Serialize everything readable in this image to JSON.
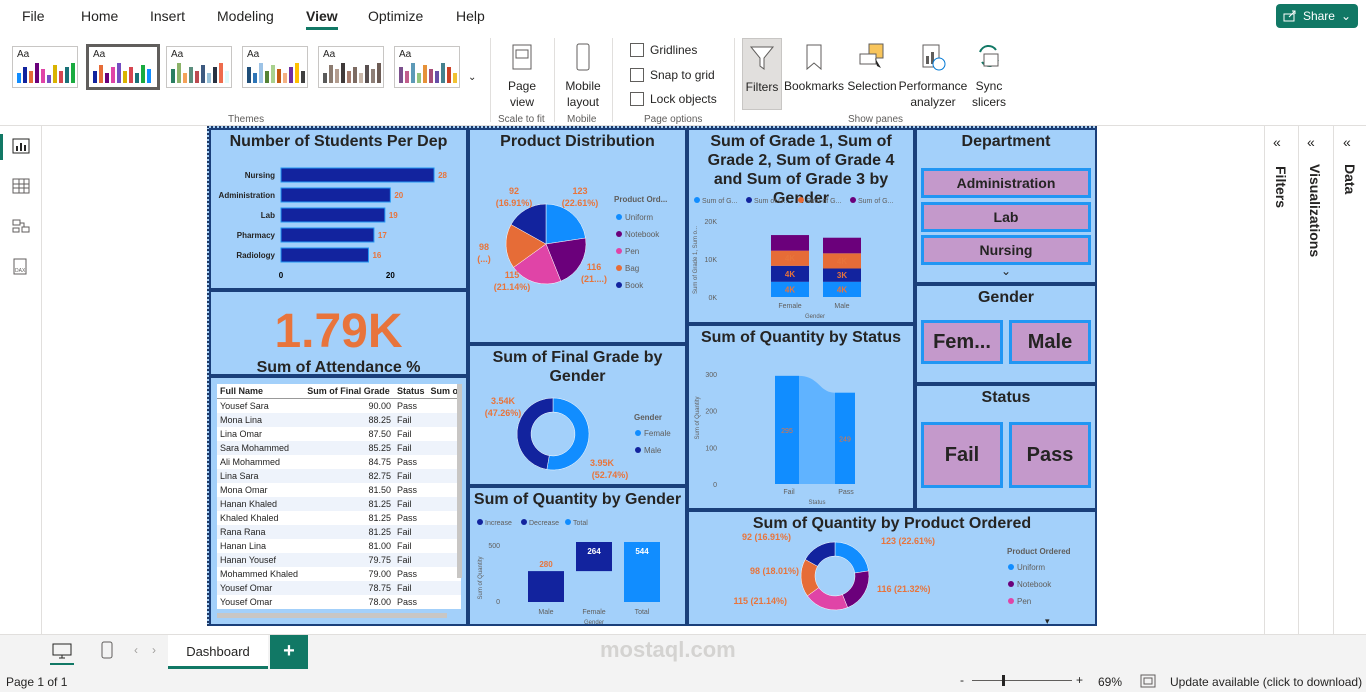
{
  "menu": {
    "items": [
      "File",
      "Home",
      "Insert",
      "Modeling",
      "View",
      "Optimize",
      "Help"
    ],
    "active": "View",
    "share": "Share"
  },
  "ribbon": {
    "themes_label": "Themes",
    "page_view": "Page view",
    "scale_label": "Scale to fit",
    "mobile_layout": "Mobile layout",
    "mobile_label": "Mobile",
    "gridlines": "Gridlines",
    "snap": "Snap to grid",
    "lock": "Lock objects",
    "page_options_label": "Page options",
    "filters": "Filters",
    "bookmarks": "Bookmarks",
    "selection": "Selection",
    "performance": "Performance analyzer",
    "sync": "Sync slicers",
    "show_panes_label": "Show panes"
  },
  "panes": {
    "filters": "Filters",
    "visualizations": "Visualizations",
    "data": "Data"
  },
  "report": {
    "students": {
      "title": "Number of Students Per Dep",
      "rows": [
        {
          "label": "Nursing",
          "value": 28
        },
        {
          "label": "Administration",
          "value": 20
        },
        {
          "label": "Lab",
          "value": 19
        },
        {
          "label": "Pharmacy",
          "value": 17
        },
        {
          "label": "Radiology",
          "value": 16
        }
      ],
      "axis": [
        "0",
        "20"
      ]
    },
    "kpi": {
      "value": "1.79K",
      "label": "Sum of Attendance %"
    },
    "product": {
      "title": "Product Distribution",
      "legend_title": "Product Ord...",
      "legend": [
        "Uniform",
        "Notebook",
        "Pen",
        "Bag",
        "Book"
      ],
      "labels": [
        "92",
        "(16.91%)",
        "123",
        "(22.61%)",
        "98",
        "(...)",
        "115",
        "(21.14%)",
        "116",
        "(21....)"
      ]
    },
    "grades": {
      "title": "Sum of Grade 1, Sum of Grade 2, Sum of Grade 4 and Sum of Grade 3 by Gender",
      "legend": [
        "Sum of G...",
        "Sum of G...",
        "Sum of G...",
        "Sum of G..."
      ],
      "yaxis": [
        "20K",
        "10K",
        "0K"
      ],
      "ylabel": "Sum of Grade 1, Sum o...",
      "xlabel": "Gender",
      "female_labels": [
        "4K",
        "4K",
        "4K"
      ],
      "male_labels": [
        "4K",
        "3K",
        "4K"
      ],
      "categories": [
        "Female",
        "Male"
      ]
    },
    "department": {
      "title": "Department",
      "items": [
        "Administration",
        "Lab",
        "Nursing"
      ]
    },
    "gender": {
      "title": "Gender",
      "items": [
        "Fem...",
        "Male"
      ]
    },
    "status": {
      "title": "Status",
      "items": [
        "Fail",
        "Pass"
      ]
    },
    "final_grade": {
      "title": "Sum of Final Grade by Gender",
      "legend_title": "Gender",
      "legend": [
        "Female",
        "Male"
      ],
      "labels": [
        "3.54K",
        "(47.26%)",
        "3.95K",
        "(52.74%)"
      ]
    },
    "quantity_status": {
      "title": "Sum of Quantity by Status",
      "yaxis": [
        "300",
        "200",
        "100",
        "0"
      ],
      "ylabel": "Sum of Quantity",
      "xlabel": "Status",
      "categories": [
        "Fail",
        "Pass"
      ],
      "values": [
        "295",
        "249"
      ]
    },
    "quantity_gender": {
      "title": "Sum of Quantity by Gender",
      "legend": [
        "Increase",
        "Decrease",
        "Total"
      ],
      "ylabel": "Sum of Quantity",
      "xlabel": "Gender",
      "yaxis": [
        "500",
        "0"
      ],
      "categories": [
        "Male",
        "Female",
        "Total"
      ],
      "values": [
        "280",
        "264",
        "544"
      ]
    },
    "quantity_product": {
      "title": "Sum of Quantity by Product Ordered",
      "legend_title": "Product Ordered",
      "legend": [
        "Uniform",
        "Notebook",
        "Pen"
      ],
      "labels": [
        "92 (16.91%)",
        "123 (22.61%)",
        "98 (18.01%)",
        "116 (21.32%)",
        "115 (21.14%)"
      ]
    },
    "table": {
      "headers": [
        "Full Name",
        "Sum of Final Grade",
        "Status",
        "Sum o"
      ],
      "rows": [
        [
          "Yousef Sara",
          "90.00",
          "Pass"
        ],
        [
          "Mona Lina",
          "88.25",
          "Fail"
        ],
        [
          "Lina Omar",
          "87.50",
          "Fail"
        ],
        [
          "Sara Mohammed",
          "85.25",
          "Fail"
        ],
        [
          "Ali Mohammed",
          "84.75",
          "Pass"
        ],
        [
          "Lina Sara",
          "82.75",
          "Fail"
        ],
        [
          "Mona Omar",
          "81.50",
          "Pass"
        ],
        [
          "Hanan Khaled",
          "81.25",
          "Fail"
        ],
        [
          "Khaled Khaled",
          "81.25",
          "Pass"
        ],
        [
          "Rana Rana",
          "81.25",
          "Fail"
        ],
        [
          "Hanan Lina",
          "81.00",
          "Fail"
        ],
        [
          "Hanan Yousef",
          "79.75",
          "Fail"
        ],
        [
          "Mohammed Khaled",
          "79.00",
          "Pass"
        ],
        [
          "Yousef Omar",
          "78.75",
          "Fail"
        ],
        [
          "Yousef Omar",
          "78.00",
          "Pass"
        ]
      ]
    }
  },
  "tabs": {
    "active": "Dashboard",
    "add": "+"
  },
  "status": {
    "page": "Page 1 of 1",
    "zoom": "69%",
    "update": "Update available (click to download)",
    "watermark": "mostaql.com"
  }
}
